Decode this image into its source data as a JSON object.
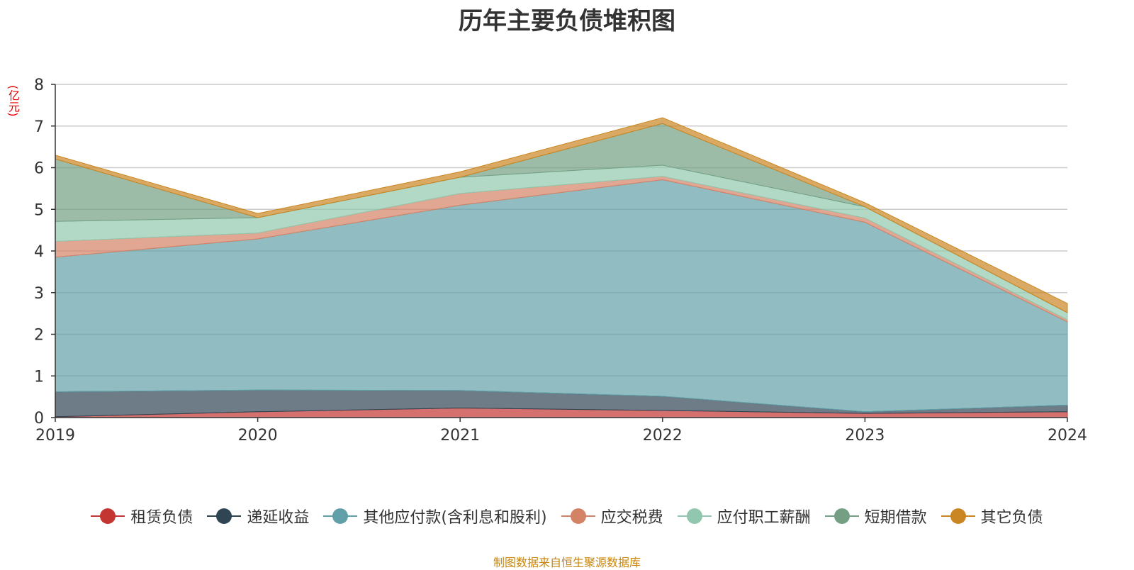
{
  "chart_data": {
    "type": "area",
    "stacked": true,
    "title": "历年主要负债堆积图",
    "ylabel": "(亿元)",
    "xlabel": "",
    "categories": [
      "2019",
      "2020",
      "2021",
      "2022",
      "2023",
      "2024"
    ],
    "ylim": [
      0,
      8
    ],
    "yticks": [
      0,
      1,
      2,
      3,
      4,
      5,
      6,
      7,
      8
    ],
    "grid": true,
    "legend_position": "bottom",
    "series": [
      {
        "name": "租赁负债",
        "color": "#c23531",
        "values": [
          0.02,
          0.14,
          0.23,
          0.17,
          0.1,
          0.14
        ]
      },
      {
        "name": "递延收益",
        "color": "#2f4554",
        "values": [
          0.6,
          0.52,
          0.42,
          0.34,
          0.04,
          0.16
        ]
      },
      {
        "name": "其他应付款(含利息和股利)",
        "color": "#61a0a8",
        "values": [
          3.23,
          3.63,
          4.45,
          5.2,
          4.55,
          2.0
        ]
      },
      {
        "name": "应交税费",
        "color": "#d48265",
        "values": [
          0.38,
          0.14,
          0.28,
          0.08,
          0.1,
          0.05
        ]
      },
      {
        "name": "应付职工薪酬",
        "color": "#91c7ae",
        "values": [
          0.48,
          0.37,
          0.39,
          0.27,
          0.27,
          0.17
        ]
      },
      {
        "name": "短期借款",
        "color": "#749f83",
        "values": [
          1.5,
          0.0,
          0.0,
          1.0,
          0.0,
          0.0
        ]
      },
      {
        "name": "其它负债",
        "color": "#ca8622",
        "values": [
          0.09,
          0.1,
          0.13,
          0.14,
          0.1,
          0.22
        ]
      }
    ]
  },
  "footer": {
    "source": "制图数据来自恒生聚源数据库"
  }
}
